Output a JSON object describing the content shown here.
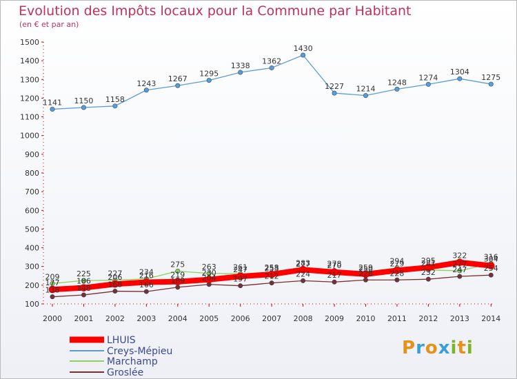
{
  "header": {
    "title": "Evolution des Impôts locaux pour la Commune par Habitant",
    "subtitle": "(en € et par an)"
  },
  "logo": {
    "letters": [
      "P",
      "r",
      "o",
      "x",
      "i",
      "t",
      "i"
    ],
    "colors": [
      "#e3931b",
      "#3a9fd6",
      "#e3931b",
      "#3a9fd6",
      "#7ab528",
      "#e3931b",
      "#7ab528"
    ]
  },
  "chart_data": {
    "type": "line",
    "title": "Evolution des Impôts locaux pour la Commune par Habitant",
    "subtitle": "(en € et par an)",
    "xlabel": "",
    "ylabel": "",
    "ylim": [
      100,
      1500
    ],
    "y_ticks": [
      100,
      200,
      300,
      400,
      500,
      600,
      700,
      800,
      900,
      1000,
      1100,
      1200,
      1300,
      1400,
      1500
    ],
    "grid": false,
    "legend_position": "bottom-left",
    "x": [
      "2000",
      "2001",
      "2002",
      "2003",
      "2004",
      "2005",
      "2006",
      "2007",
      "2008",
      "2009",
      "2010",
      "2011",
      "2012",
      "2013",
      "2014"
    ],
    "series": [
      {
        "name": "LHUIS",
        "color": "#ff0000",
        "values": [
          177,
          186,
          206,
          216,
          219,
          230,
          247,
          258,
          283,
          270,
          259,
          279,
          295,
          322,
          304
        ]
      },
      {
        "name": "Creys-Mépieu",
        "color": "#5a9cd6",
        "values": [
          1141,
          1150,
          1158,
          1243,
          1267,
          1295,
          1338,
          1362,
          1430,
          1227,
          1214,
          1248,
          1274,
          1304,
          1275
        ]
      },
      {
        "name": "Marchamp",
        "color": "#8ed05a",
        "values": [
          209,
          225,
          227,
          234,
          275,
          263,
          261,
          253,
          277,
          278,
          250,
          294,
          281,
          277,
          316
        ]
      },
      {
        "name": "Groslée",
        "color": "#7a2e2e",
        "values": [
          138,
          148,
          168,
          166,
          189,
          204,
          197,
          212,
          224,
          217,
          228,
          228,
          232,
          247,
          254
        ]
      }
    ]
  }
}
